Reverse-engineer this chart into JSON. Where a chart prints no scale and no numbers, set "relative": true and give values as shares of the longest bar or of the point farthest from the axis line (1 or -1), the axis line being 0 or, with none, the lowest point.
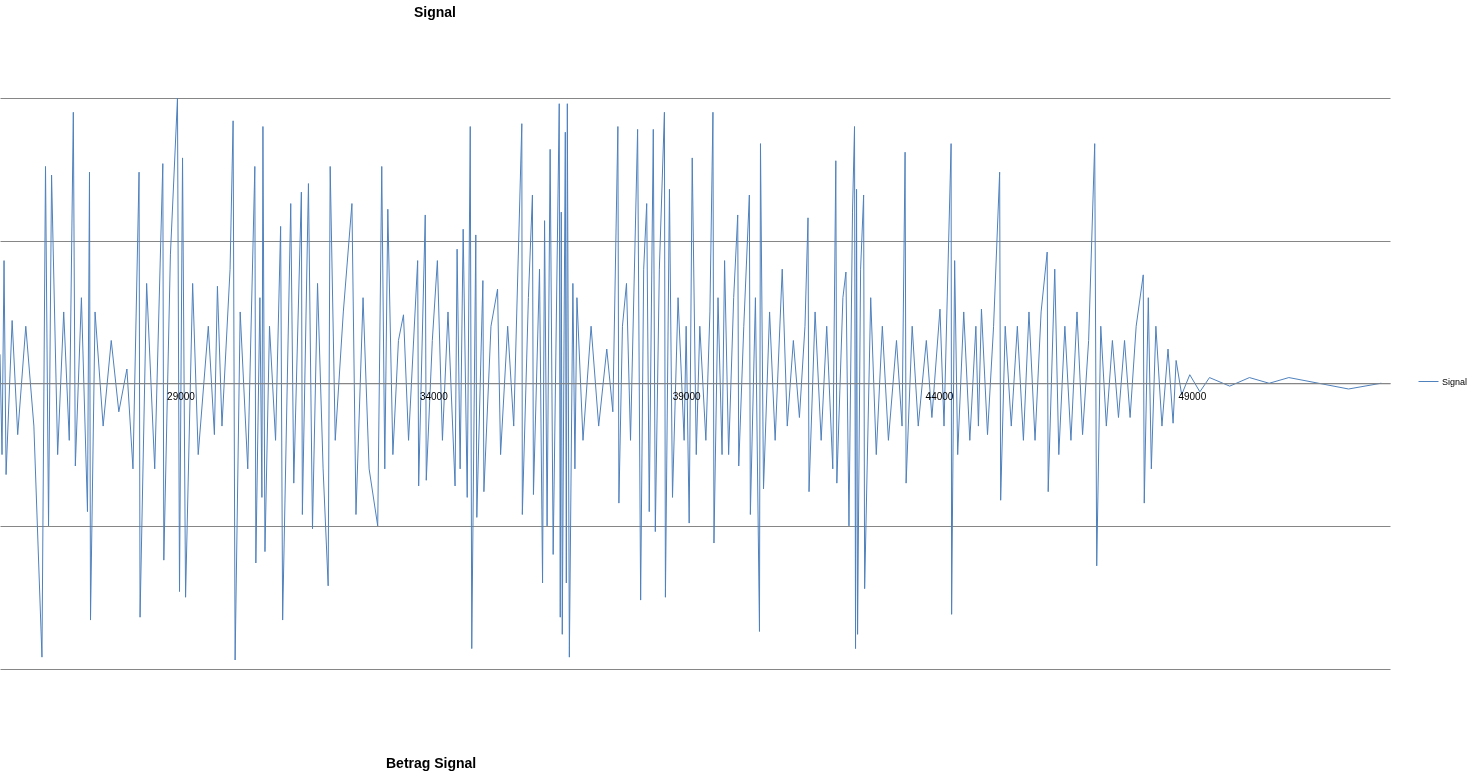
{
  "chart_data": {
    "type": "line",
    "title": "Signal",
    "relative": true,
    "grid": "y",
    "legend": "right",
    "tick_labels": "x",
    "xlim": [
      25430,
      52920
    ],
    "xticks": [
      29000,
      34000,
      39000,
      44000,
      49000
    ],
    "annotations": [
      "Betrag Signal"
    ],
    "x": [
      25430,
      25470,
      25510,
      25550,
      25670,
      25780,
      25940,
      26100,
      26260,
      26330,
      26390,
      26450,
      26570,
      26690,
      26800,
      26880,
      26920,
      27040,
      27160,
      27200,
      27220,
      27310,
      27470,
      27630,
      27780,
      27940,
      28060,
      28180,
      28200,
      28330,
      28490,
      28650,
      28670,
      28800,
      28940,
      28980,
      29040,
      29100,
      29240,
      29350,
      29550,
      29670,
      29730,
      29820,
      29980,
      30040,
      30080,
      30180,
      30330,
      30470,
      30490,
      30570,
      30610,
      30630,
      30670,
      30760,
      30880,
      30980,
      31020,
      31180,
      31240,
      31390,
      31410,
      31530,
      31610,
      31710,
      31820,
      31920,
      31960,
      32060,
      32220,
      32390,
      32470,
      32610,
      32730,
      32900,
      32980,
      33040,
      33100,
      33200,
      33310,
      33410,
      33510,
      33690,
      33710,
      33840,
      33860,
      33980,
      34080,
      34180,
      34290,
      34430,
      34470,
      34530,
      34590,
      34670,
      34730,
      34760,
      34840,
      34860,
      34980,
      35000,
      35140,
      35270,
      35330,
      35470,
      35590,
      35750,
      35760,
      35880,
      35960,
      35980,
      36100,
      36160,
      36200,
      36250,
      36310,
      36370,
      36490,
      36510,
      36530,
      36550,
      36610,
      36630,
      36650,
      36690,
      36760,
      36800,
      36840,
      36960,
      37120,
      37270,
      37430,
      37550,
      37650,
      37670,
      37740,
      37820,
      37900,
      38040,
      38100,
      38160,
      38220,
      38270,
      38350,
      38390,
      38470,
      38570,
      38590,
      38670,
      38730,
      38840,
      38960,
      39000,
      39060,
      39120,
      39200,
      39270,
      39390,
      39470,
      39530,
      39550,
      39630,
      39710,
      39760,
      39840,
      39940,
      40020,
      40040,
      40140,
      40250,
      40270,
      40370,
      40450,
      40470,
      40530,
      40650,
      40760,
      40900,
      41000,
      41120,
      41240,
      41350,
      41410,
      41430,
      41550,
      41670,
      41780,
      41900,
      41960,
      41980,
      42100,
      42160,
      42220,
      42290,
      42330,
      42350,
      42370,
      42390,
      42450,
      42510,
      42530,
      42650,
      42760,
      42880,
      43000,
      43160,
      43270,
      43330,
      43350,
      43470,
      43590,
      43750,
      43860,
      44020,
      44100,
      44240,
      44250,
      44310,
      44370,
      44490,
      44610,
      44730,
      44780,
      44840,
      44960,
      45080,
      45200,
      45220,
      45310,
      45430,
      45550,
      45670,
      45780,
      45900,
      46020,
      46140,
      46160,
      46290,
      46370,
      46490,
      46610,
      46730,
      46840,
      46960,
      47080,
      47120,
      47200,
      47310,
      47430,
      47550,
      47670,
      47780,
      47900,
      48040,
      48060,
      48140,
      48200,
      48290,
      48410,
      48530,
      48630,
      48690,
      48800,
      48960,
      49160,
      49350,
      49750,
      50140,
      50530,
      50920,
      51510,
      52100,
      52740
    ],
    "series": [
      {
        "name": "Signal",
        "color": "#4f81bd",
        "values": [
          0.1,
          -0.25,
          0.43,
          -0.32,
          0.22,
          -0.18,
          0.2,
          -0.15,
          -0.96,
          0.76,
          -0.5,
          0.73,
          -0.25,
          0.25,
          -0.2,
          0.95,
          -0.29,
          0.3,
          -0.45,
          0.74,
          -0.83,
          0.25,
          -0.15,
          0.15,
          -0.1,
          0.05,
          -0.3,
          0.74,
          -0.82,
          0.35,
          -0.3,
          0.77,
          -0.62,
          0.45,
          1,
          -0.73,
          0.79,
          -0.75,
          0.35,
          -0.25,
          0.2,
          -0.18,
          0.34,
          -0.15,
          0.4,
          0.92,
          -0.97,
          0.25,
          -0.3,
          0.76,
          -0.63,
          0.3,
          -0.4,
          0.9,
          -0.59,
          0.2,
          -0.2,
          0.55,
          -0.83,
          0.63,
          -0.35,
          0.67,
          -0.46,
          0.7,
          -0.51,
          0.35,
          -0.3,
          -0.71,
          0.76,
          -0.2,
          0.25,
          0.63,
          -0.46,
          0.3,
          -0.3,
          -0.5,
          0.76,
          -0.3,
          0.61,
          -0.25,
          0.15,
          0.24,
          -0.2,
          0.43,
          -0.36,
          0.59,
          -0.34,
          0.15,
          0.43,
          -0.2,
          0.25,
          -0.36,
          0.47,
          -0.3,
          0.54,
          -0.4,
          0.9,
          -0.93,
          0.52,
          -0.47,
          0.36,
          -0.38,
          0.2,
          0.33,
          -0.25,
          0.2,
          -0.15,
          0.91,
          -0.46,
          0.3,
          0.66,
          -0.39,
          0.4,
          -0.7,
          0.57,
          -0.5,
          0.82,
          -0.6,
          0.98,
          -0.82,
          0.6,
          -0.88,
          0.88,
          -0.7,
          0.98,
          -0.96,
          0.35,
          -0.3,
          0.3,
          -0.2,
          0.2,
          -0.15,
          0.12,
          -0.1,
          0.9,
          -0.42,
          0.2,
          0.35,
          -0.2,
          0.89,
          -0.76,
          0.4,
          0.63,
          -0.45,
          0.89,
          -0.52,
          0.4,
          0.95,
          -0.75,
          0.68,
          -0.4,
          0.3,
          -0.2,
          0.2,
          -0.49,
          0.79,
          -0.25,
          0.2,
          -0.2,
          0.25,
          0.95,
          -0.56,
          0.3,
          -0.25,
          0.43,
          -0.25,
          0.3,
          0.59,
          -0.29,
          0.2,
          0.66,
          -0.46,
          0.3,
          -0.87,
          0.84,
          -0.37,
          0.25,
          -0.2,
          0.4,
          -0.15,
          0.15,
          -0.12,
          0.2,
          0.58,
          -0.38,
          0.25,
          -0.2,
          0.2,
          -0.3,
          0.78,
          -0.35,
          0.3,
          0.39,
          -0.5,
          0.6,
          0.9,
          -0.93,
          0.68,
          -0.88,
          0.4,
          0.66,
          -0.72,
          0.3,
          -0.25,
          0.2,
          -0.2,
          0.15,
          -0.15,
          0.81,
          -0.35,
          0.2,
          -0.15,
          0.15,
          -0.12,
          0.26,
          -0.15,
          0.84,
          -0.81,
          0.43,
          -0.25,
          0.25,
          -0.2,
          0.2,
          -0.15,
          0.26,
          -0.18,
          0.2,
          0.74,
          -0.41,
          0.2,
          -0.15,
          0.2,
          -0.2,
          0.25,
          -0.2,
          0.25,
          0.46,
          -0.38,
          0.4,
          -0.25,
          0.2,
          -0.2,
          0.25,
          -0.18,
          0.15,
          0.84,
          -0.64,
          0.2,
          -0.15,
          0.15,
          -0.12,
          0.15,
          -0.12,
          0.2,
          0.38,
          -0.42,
          0.3,
          -0.3,
          0.2,
          -0.15,
          0.12,
          -0.14,
          0.08,
          -0.04,
          0.03,
          -0.03,
          0.02,
          -0.01,
          0.02,
          0,
          0.02,
          0,
          -0.02,
          0
        ]
      }
    ]
  }
}
